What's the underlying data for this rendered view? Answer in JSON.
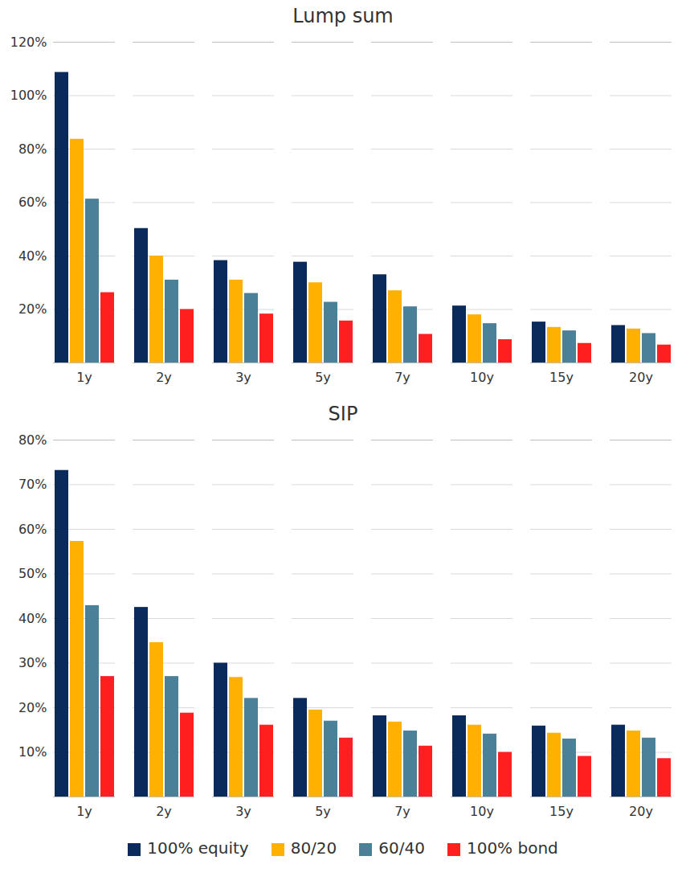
{
  "chart_data": [
    {
      "type": "bar",
      "title": "Lump sum",
      "categories": [
        "1y",
        "2y",
        "3y",
        "5y",
        "7y",
        "10y",
        "15y",
        "20y"
      ],
      "series": [
        {
          "name": "100% equity",
          "color": "#0b2a5c",
          "values": [
            108.7,
            50.3,
            38.3,
            37.7,
            33,
            21.3,
            15.3,
            14
          ]
        },
        {
          "name": "80/20",
          "color": "#ffb000",
          "values": [
            83.7,
            40,
            31,
            30,
            27,
            18,
            13.3,
            12.7
          ]
        },
        {
          "name": "60/40",
          "color": "#4a8199",
          "values": [
            61.3,
            31,
            26,
            22.7,
            21,
            14.7,
            12,
            11
          ]
        },
        {
          "name": "100% bond",
          "color": "#ff1f1f",
          "values": [
            26.3,
            20,
            18.3,
            15.7,
            10.7,
            8.7,
            7.3,
            6.7
          ]
        }
      ],
      "ylim": [
        0,
        120
      ],
      "yticks": [
        {
          "value": 20,
          "label": "20%"
        },
        {
          "value": 40,
          "label": "40%"
        },
        {
          "value": 60,
          "label": "60%"
        },
        {
          "value": 80,
          "label": "80%"
        },
        {
          "value": 100,
          "label": "100%"
        },
        {
          "value": 120,
          "label": "120%"
        }
      ],
      "grid": true
    },
    {
      "type": "bar",
      "title": "SIP",
      "categories": [
        "1y",
        "2y",
        "3y",
        "5y",
        "7y",
        "10y",
        "15y",
        "20y"
      ],
      "series": [
        {
          "name": "100% equity",
          "color": "#0b2a5c",
          "values": [
            73.2,
            42.5,
            30,
            22.1,
            18.2,
            18.2,
            15.9,
            16.1
          ]
        },
        {
          "name": "80/20",
          "color": "#ffb000",
          "values": [
            57.3,
            34.6,
            26.8,
            19.5,
            16.8,
            16.1,
            14.3,
            14.8
          ]
        },
        {
          "name": "60/40",
          "color": "#4a8199",
          "values": [
            42.9,
            27,
            22.1,
            17,
            14.8,
            14.1,
            13,
            13.2
          ]
        },
        {
          "name": "100% bond",
          "color": "#ff1f1f",
          "values": [
            27,
            18.8,
            16.1,
            13.2,
            11.4,
            10,
            9.1,
            8.6
          ]
        }
      ],
      "ylim": [
        0,
        80
      ],
      "yticks": [
        {
          "value": 10,
          "label": "10%"
        },
        {
          "value": 20,
          "label": "20%"
        },
        {
          "value": 30,
          "label": "30%"
        },
        {
          "value": 40,
          "label": "40%"
        },
        {
          "value": 50,
          "label": "50%"
        },
        {
          "value": 60,
          "label": "60%"
        },
        {
          "value": 70,
          "label": "70%"
        },
        {
          "value": 80,
          "label": "80%"
        }
      ],
      "grid": true,
      "legend": "bottom"
    }
  ]
}
